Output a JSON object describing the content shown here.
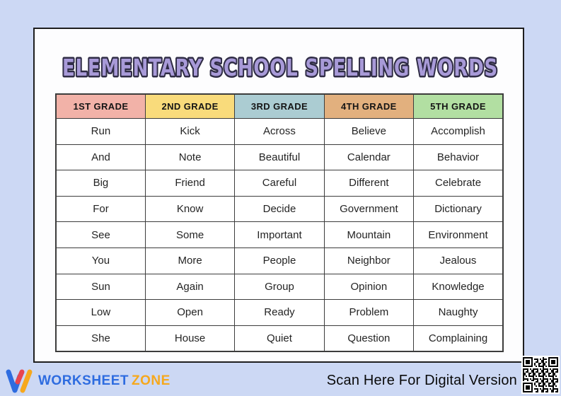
{
  "title": "ELEMENTARY SCHOOL SPELLING WORDS",
  "colors": {
    "page_background": "#ccd8f4",
    "card_background": "#fdfdfe",
    "card_border": "#1e1e1e",
    "title_fill": "#a89ad8",
    "title_outline": "#2f2c45",
    "table_border": "#3c3c3c",
    "qr_color": "#000000"
  },
  "table": {
    "row_count": 9,
    "columns": [
      {
        "label": "1ST GRADE",
        "header_color": "#f2b2a8",
        "words": [
          "Run",
          "And",
          "Big",
          "For",
          "See",
          "You",
          "Sun",
          "Low",
          "She"
        ]
      },
      {
        "label": "2ND GRADE",
        "header_color": "#f9db7b",
        "words": [
          "Kick",
          "Note",
          "Friend",
          "Know",
          "Some",
          "More",
          "Again",
          "Open",
          "House"
        ]
      },
      {
        "label": "3RD GRADE",
        "header_color": "#abccd2",
        "words": [
          "Across",
          "Beautiful",
          "Careful",
          "Decide",
          "Important",
          "People",
          "Group",
          "Ready",
          "Quiet"
        ]
      },
      {
        "label": "4TH GRADE",
        "header_color": "#e2b07e",
        "words": [
          "Believe",
          "Calendar",
          "Different",
          "Government",
          "Mountain",
          "Neighbor",
          "Opinion",
          "Problem",
          "Question"
        ]
      },
      {
        "label": "5TH GRADE",
        "header_color": "#b2dfa2",
        "words": [
          "Accomplish",
          "Behavior",
          "Celebrate",
          "Dictionary",
          "Environment",
          "Jealous",
          "Knowledge",
          "Naughty",
          "Complaining"
        ]
      }
    ]
  },
  "footer": {
    "logo": {
      "worksheet": "WORKSHEET",
      "zone": "ZONE",
      "worksheet_color": "#2e6ce0",
      "zone_color": "#f6a81d"
    },
    "scan_text": "Scan Here For Digital Version"
  }
}
